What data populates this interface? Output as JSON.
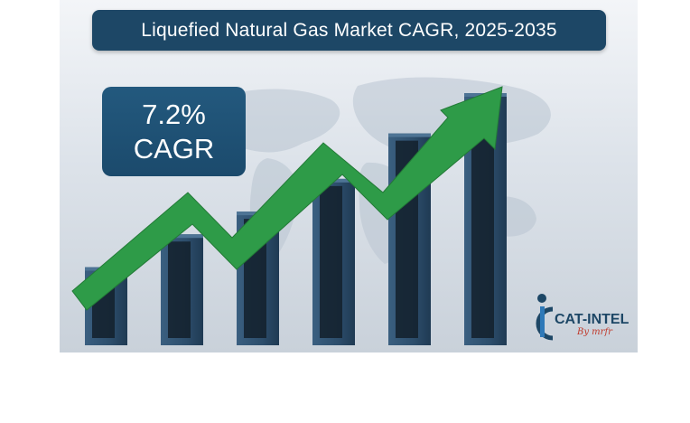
{
  "title": "Liquefied Natural Gas Market CAGR, 2025-2035",
  "cagr": {
    "value": "7.2%",
    "label": "CAGR"
  },
  "logo": {
    "name": "CAT-INTEL",
    "sub": "By mrfr"
  },
  "colors": {
    "title_bg": "#1d4766",
    "bar": "#2d4e6c",
    "arrow": "#2e9b48",
    "logo_red": "#c0392b"
  },
  "chart_data": {
    "type": "bar",
    "categories": [
      "",
      "",
      "",
      "",
      "",
      ""
    ],
    "values": [
      31,
      44,
      53,
      66,
      84,
      100
    ],
    "ylim": [
      0,
      100
    ],
    "trend_arrow": true,
    "grid": false
  }
}
